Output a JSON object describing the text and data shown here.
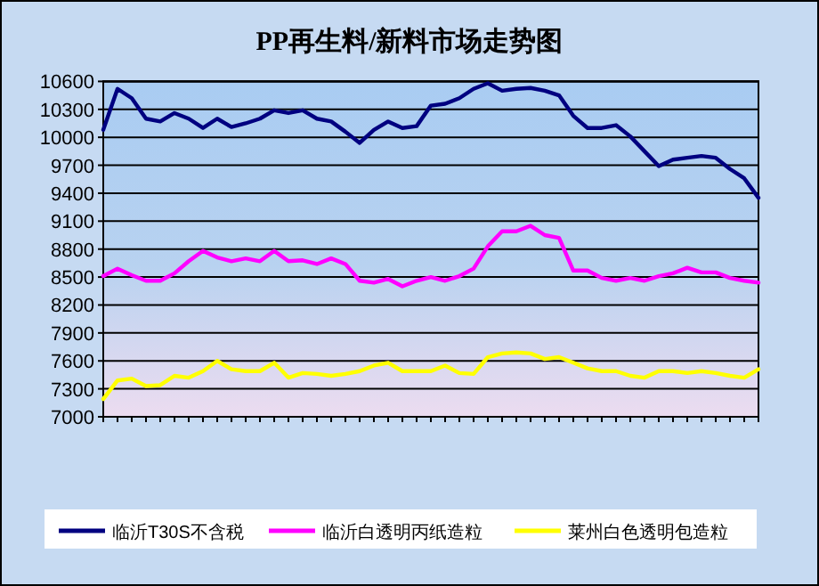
{
  "chart_data": {
    "type": "line",
    "title": "PP再生料/新料市场走势图",
    "categories": [
      null,
      null,
      null,
      null,
      null,
      null,
      null,
      null,
      null,
      null,
      null,
      null,
      null,
      null,
      null,
      null,
      null,
      null,
      null,
      null,
      null,
      null,
      null,
      null,
      null,
      null,
      null,
      null,
      null,
      null,
      null,
      null,
      null,
      null,
      null,
      null,
      null,
      null,
      null,
      null,
      null,
      null,
      null,
      null,
      null,
      null,
      null
    ],
    "series": [
      {
        "name": "临沂T30S不含税",
        "color": "#000080",
        "values": [
          10080,
          10520,
          10420,
          10200,
          10170,
          10260,
          10200,
          10100,
          10200,
          10110,
          10150,
          10200,
          10290,
          10260,
          10290,
          10200,
          10170,
          10060,
          9940,
          10080,
          10170,
          10100,
          10120,
          10340,
          10360,
          10420,
          10520,
          10580,
          10500,
          10520,
          10530,
          10500,
          10450,
          10230,
          10100,
          10100,
          10130,
          10010,
          9850,
          9690,
          9760,
          9780,
          9800,
          9780,
          9660,
          9560,
          9350
        ]
      },
      {
        "name": "临沂白透明丙纸造粒",
        "color": "#ff00ff",
        "values": [
          8510,
          8590,
          8520,
          8460,
          8460,
          8540,
          8670,
          8780,
          8710,
          8670,
          8700,
          8670,
          8780,
          8670,
          8680,
          8640,
          8700,
          8640,
          8460,
          8440,
          8480,
          8400,
          8460,
          8500,
          8460,
          8510,
          8590,
          8830,
          8990,
          8990,
          9050,
          8950,
          8920,
          8570,
          8570,
          8490,
          8460,
          8490,
          8460,
          8510,
          8540,
          8600,
          8550,
          8550,
          8490,
          8460,
          8440
        ]
      },
      {
        "name": "莱州白色透明包造粒",
        "color": "#ffff00",
        "values": [
          7190,
          7390,
          7410,
          7330,
          7340,
          7440,
          7420,
          7490,
          7600,
          7510,
          7490,
          7490,
          7580,
          7420,
          7470,
          7460,
          7440,
          7460,
          7490,
          7550,
          7580,
          7490,
          7490,
          7490,
          7550,
          7470,
          7460,
          7640,
          7680,
          7690,
          7680,
          7620,
          7640,
          7580,
          7520,
          7490,
          7490,
          7440,
          7420,
          7490,
          7490,
          7470,
          7490,
          7470,
          7440,
          7420,
          7510
        ]
      }
    ],
    "ylim": [
      7000,
      10600
    ],
    "yticks": [
      7000,
      7300,
      7600,
      7900,
      8200,
      8500,
      8800,
      9100,
      9400,
      9700,
      10000,
      10300,
      10600
    ],
    "grid": "y",
    "legend": "bottom",
    "tick_labels": "y",
    "marker": "none",
    "line_style": "solid"
  }
}
